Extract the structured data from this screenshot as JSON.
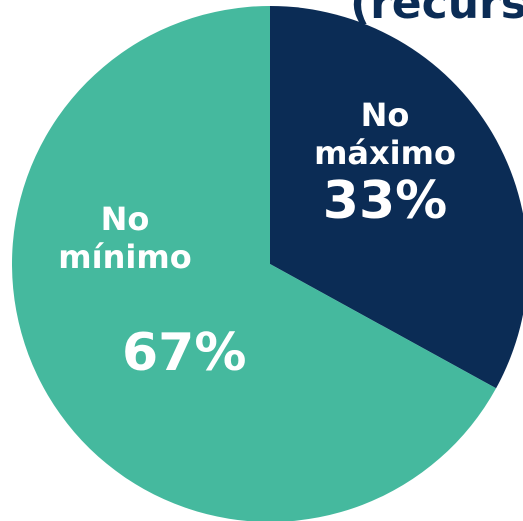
{
  "header": {
    "title_fragment": "(recurs"
  },
  "chart_data": {
    "type": "pie",
    "slices": [
      {
        "line1": "No",
        "line2": "máximo",
        "percent_label": "33%",
        "value": 33,
        "color": "#0b2c55"
      },
      {
        "line1": "No",
        "line2": "mínimo",
        "percent_label": "67%",
        "value": 67,
        "color": "#45b99e"
      }
    ]
  }
}
